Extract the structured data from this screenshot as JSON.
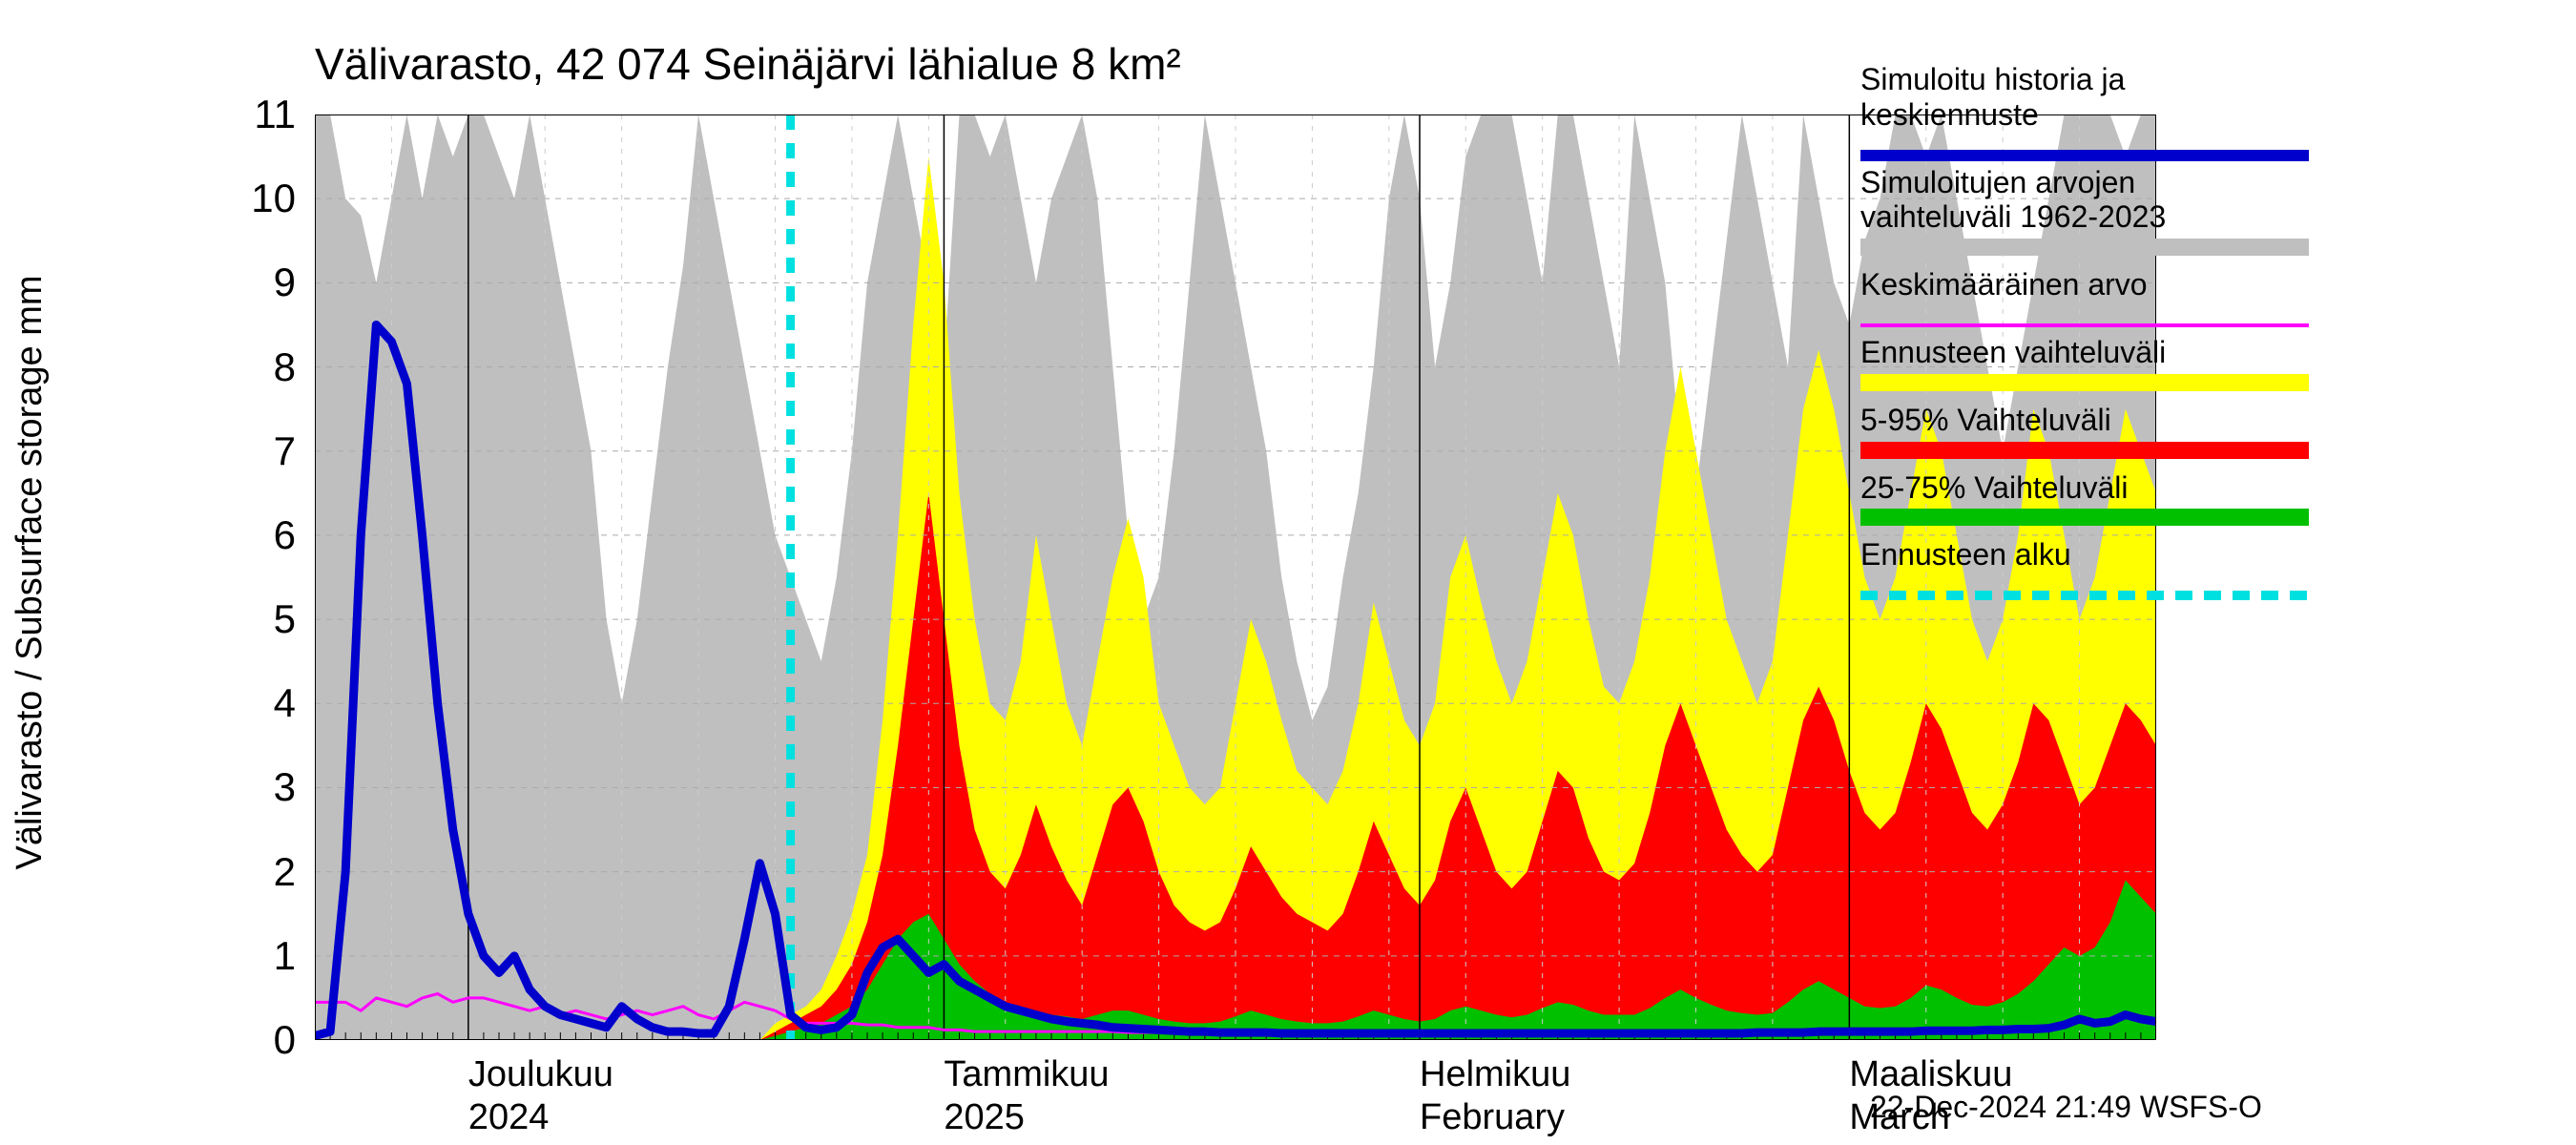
{
  "title": "Välivarasto, 42 074 Seinäjärvi lähialue 8 km²",
  "ylabel": "Välivarasto / Subsurface storage  mm",
  "footer": "22-Dec-2024 21:49 WSFS-O",
  "chart": {
    "type": "area-line-timeseries",
    "background_color": "#ffffff",
    "grid_color": "#aaaaaa",
    "grid_minor_color": "#cccccc",
    "ylim": [
      0,
      11
    ],
    "yticks": [
      0,
      1,
      2,
      3,
      4,
      5,
      6,
      7,
      8,
      9,
      10,
      11
    ],
    "x_days": 121,
    "x_month_starts": [
      0,
      10,
      41,
      72,
      100
    ],
    "x_month_labels_top": [
      "",
      "Joulukuu",
      "Tammikuu",
      "Helmikuu",
      "Maaliskuu"
    ],
    "x_month_labels_bot": [
      "",
      "2024",
      "2025",
      "February",
      "March"
    ],
    "title_fontsize": 46,
    "axis_label_fontsize": 38,
    "tick_fontsize": 42,
    "legend_fontsize": 32,
    "blue_line_color": "#0000cc",
    "blue_line_width": 9,
    "magenta_line_color": "#ff00ff",
    "magenta_line_width": 3,
    "cyan_dash_color": "#00e0e0",
    "cyan_dash_width": 9,
    "grey_fill": "#bfbfbf",
    "yellow_fill": "#ffff00",
    "red_fill": "#ff0000",
    "green_fill": "#00c000",
    "forecast_start_day": 31,
    "grey_upper": [
      11,
      11,
      10,
      9.8,
      9,
      10,
      11,
      10,
      11,
      10.5,
      11,
      11,
      10.5,
      10,
      11,
      10,
      9,
      8,
      7,
      5,
      4,
      5,
      6.5,
      8,
      9.2,
      11,
      10,
      9,
      8,
      7,
      6,
      5.5,
      5,
      4.5,
      5.5,
      7,
      9,
      10,
      11,
      10,
      9,
      8,
      11,
      11,
      10.5,
      11,
      10,
      9,
      10,
      10.5,
      11,
      10,
      8,
      6,
      5,
      5.5,
      7,
      9,
      11,
      10,
      9,
      8,
      7,
      5.5,
      4.5,
      3.8,
      4.2,
      5.5,
      6.5,
      8,
      10,
      11,
      10,
      8,
      9,
      10.5,
      11,
      11,
      11,
      10,
      9,
      11,
      11,
      10,
      9,
      8,
      11,
      10,
      9,
      7,
      6.5,
      8,
      9.5,
      11,
      10,
      9,
      8,
      11,
      10,
      9,
      8.5,
      9.5,
      10,
      11,
      11,
      10.5,
      11,
      10,
      9,
      8,
      7,
      8,
      9,
      10,
      11,
      11,
      11,
      11,
      10.5,
      11,
      11
    ],
    "grey_lower": [
      0,
      0,
      0,
      0,
      0,
      0,
      0,
      0,
      0,
      0,
      0,
      0,
      0,
      0,
      0,
      0,
      0,
      0,
      0,
      0,
      0,
      0,
      0,
      0,
      0,
      0,
      0,
      0,
      0,
      0,
      0,
      0,
      0,
      0,
      0,
      0,
      0,
      0,
      0,
      0,
      0,
      0,
      0,
      0,
      0,
      0,
      0,
      0,
      0,
      0,
      0,
      0,
      0,
      0,
      0,
      0,
      0,
      0,
      0,
      0,
      0,
      0,
      0,
      0,
      0,
      0,
      0,
      0,
      0,
      0,
      0,
      0,
      0,
      0,
      0,
      0,
      0,
      0,
      0,
      0,
      0,
      0,
      0,
      0,
      0,
      0,
      0,
      0,
      0,
      0,
      0,
      0,
      0,
      0,
      0,
      0,
      0,
      0,
      0,
      0,
      0,
      0,
      0,
      0,
      0,
      0,
      0,
      0,
      0,
      0,
      0,
      0,
      0,
      0,
      0,
      0,
      0,
      0,
      0,
      0,
      0
    ],
    "yellow_upper": [
      0,
      0,
      0,
      0,
      0,
      0,
      0,
      0,
      0,
      0,
      0,
      0,
      0,
      0,
      0,
      0,
      0,
      0,
      0,
      0,
      0,
      0,
      0,
      0,
      0,
      0,
      0,
      0,
      0,
      0,
      0.2,
      0.3,
      0.4,
      0.6,
      1.0,
      1.5,
      2.2,
      3.8,
      6.0,
      8.5,
      10.5,
      9.0,
      6.5,
      5.0,
      4.0,
      3.8,
      4.5,
      6.0,
      5.0,
      4.0,
      3.5,
      4.5,
      5.5,
      6.2,
      5.5,
      4.0,
      3.5,
      3.0,
      2.8,
      3.0,
      4.0,
      5.0,
      4.5,
      3.8,
      3.2,
      3.0,
      2.8,
      3.2,
      4.0,
      5.2,
      4.5,
      3.8,
      3.5,
      4.0,
      5.5,
      6.0,
      5.2,
      4.5,
      4.0,
      4.5,
      5.5,
      6.5,
      6.0,
      5.0,
      4.2,
      4.0,
      4.5,
      5.5,
      7.0,
      8.0,
      7.0,
      6.0,
      5.0,
      4.5,
      4.0,
      4.5,
      6.0,
      7.5,
      8.2,
      7.5,
      6.5,
      5.5,
      5.0,
      5.5,
      6.5,
      7.5,
      7.0,
      6.0,
      5.0,
      4.5,
      5.0,
      6.0,
      7.5,
      7.0,
      6.0,
      5.0,
      5.5,
      6.5,
      7.5,
      7.0,
      6.5
    ],
    "red_upper": [
      0,
      0,
      0,
      0,
      0,
      0,
      0,
      0,
      0,
      0,
      0,
      0,
      0,
      0,
      0,
      0,
      0,
      0,
      0,
      0,
      0,
      0,
      0,
      0,
      0,
      0,
      0,
      0,
      0,
      0,
      0.1,
      0.2,
      0.3,
      0.4,
      0.6,
      0.9,
      1.4,
      2.2,
      3.5,
      5.0,
      6.5,
      5.0,
      3.5,
      2.5,
      2.0,
      1.8,
      2.2,
      2.8,
      2.3,
      1.9,
      1.6,
      2.2,
      2.8,
      3.0,
      2.6,
      2.0,
      1.6,
      1.4,
      1.3,
      1.4,
      1.8,
      2.3,
      2.0,
      1.7,
      1.5,
      1.4,
      1.3,
      1.5,
      2.0,
      2.6,
      2.2,
      1.8,
      1.6,
      1.9,
      2.6,
      3.0,
      2.5,
      2.0,
      1.8,
      2.0,
      2.6,
      3.2,
      3.0,
      2.4,
      2.0,
      1.9,
      2.1,
      2.7,
      3.5,
      4.0,
      3.5,
      3.0,
      2.5,
      2.2,
      2.0,
      2.2,
      3.0,
      3.8,
      4.2,
      3.8,
      3.2,
      2.7,
      2.5,
      2.7,
      3.3,
      4.0,
      3.7,
      3.2,
      2.7,
      2.5,
      2.8,
      3.3,
      4.0,
      3.8,
      3.3,
      2.8,
      3.0,
      3.5,
      4.0,
      3.8,
      3.5
    ],
    "green_upper": [
      0,
      0,
      0,
      0,
      0,
      0,
      0,
      0,
      0,
      0,
      0,
      0,
      0,
      0,
      0,
      0,
      0,
      0,
      0,
      0,
      0,
      0,
      0,
      0,
      0,
      0,
      0,
      0,
      0,
      0,
      0.05,
      0.1,
      0.15,
      0.2,
      0.3,
      0.4,
      0.6,
      0.9,
      1.2,
      1.4,
      1.5,
      1.2,
      0.9,
      0.7,
      0.55,
      0.45,
      0.4,
      0.35,
      0.3,
      0.28,
      0.25,
      0.3,
      0.35,
      0.35,
      0.3,
      0.25,
      0.22,
      0.2,
      0.2,
      0.22,
      0.28,
      0.35,
      0.3,
      0.25,
      0.22,
      0.2,
      0.2,
      0.22,
      0.28,
      0.35,
      0.3,
      0.25,
      0.22,
      0.25,
      0.35,
      0.4,
      0.35,
      0.3,
      0.27,
      0.3,
      0.38,
      0.45,
      0.42,
      0.35,
      0.3,
      0.3,
      0.3,
      0.38,
      0.5,
      0.6,
      0.5,
      0.42,
      0.35,
      0.32,
      0.3,
      0.32,
      0.45,
      0.6,
      0.7,
      0.6,
      0.5,
      0.4,
      0.38,
      0.4,
      0.5,
      0.65,
      0.6,
      0.5,
      0.42,
      0.4,
      0.45,
      0.55,
      0.7,
      0.9,
      1.1,
      1.0,
      1.1,
      1.4,
      1.9,
      1.7,
      1.5
    ],
    "lower_zero": [
      0,
      0,
      0,
      0,
      0,
      0,
      0,
      0,
      0,
      0,
      0,
      0,
      0,
      0,
      0,
      0,
      0,
      0,
      0,
      0,
      0,
      0,
      0,
      0,
      0,
      0,
      0,
      0,
      0,
      0,
      0,
      0,
      0,
      0,
      0,
      0,
      0,
      0,
      0,
      0,
      0,
      0,
      0,
      0,
      0,
      0,
      0,
      0,
      0,
      0,
      0,
      0,
      0,
      0,
      0,
      0,
      0,
      0,
      0,
      0,
      0,
      0,
      0,
      0,
      0,
      0,
      0,
      0,
      0,
      0,
      0,
      0,
      0,
      0,
      0,
      0,
      0,
      0,
      0,
      0,
      0,
      0,
      0,
      0,
      0,
      0,
      0,
      0,
      0,
      0,
      0,
      0,
      0,
      0,
      0,
      0,
      0,
      0,
      0,
      0,
      0,
      0,
      0,
      0,
      0,
      0,
      0,
      0,
      0,
      0,
      0,
      0,
      0,
      0,
      0,
      0,
      0,
      0,
      0,
      0,
      0
    ],
    "blue_line": [
      0.05,
      0.1,
      2.0,
      6.0,
      8.5,
      8.3,
      7.8,
      6.0,
      4.0,
      2.5,
      1.5,
      1.0,
      0.8,
      1.0,
      0.6,
      0.4,
      0.3,
      0.25,
      0.2,
      0.15,
      0.4,
      0.25,
      0.15,
      0.1,
      0.1,
      0.08,
      0.08,
      0.4,
      1.2,
      2.1,
      1.5,
      0.3,
      0.15,
      0.12,
      0.15,
      0.3,
      0.8,
      1.1,
      1.2,
      1.0,
      0.8,
      0.9,
      0.7,
      0.6,
      0.5,
      0.4,
      0.35,
      0.3,
      0.25,
      0.22,
      0.2,
      0.18,
      0.15,
      0.14,
      0.13,
      0.12,
      0.11,
      0.1,
      0.1,
      0.09,
      0.09,
      0.09,
      0.09,
      0.08,
      0.08,
      0.08,
      0.08,
      0.08,
      0.08,
      0.08,
      0.08,
      0.08,
      0.08,
      0.08,
      0.08,
      0.08,
      0.08,
      0.08,
      0.08,
      0.08,
      0.08,
      0.08,
      0.08,
      0.08,
      0.08,
      0.08,
      0.08,
      0.08,
      0.08,
      0.08,
      0.08,
      0.08,
      0.08,
      0.08,
      0.09,
      0.09,
      0.09,
      0.09,
      0.1,
      0.1,
      0.1,
      0.1,
      0.1,
      0.1,
      0.1,
      0.11,
      0.11,
      0.11,
      0.11,
      0.12,
      0.12,
      0.13,
      0.13,
      0.14,
      0.18,
      0.25,
      0.2,
      0.22,
      0.3,
      0.25,
      0.22
    ],
    "magenta_line": [
      0.45,
      0.45,
      0.45,
      0.35,
      0.5,
      0.45,
      0.4,
      0.5,
      0.55,
      0.45,
      0.5,
      0.5,
      0.45,
      0.4,
      0.35,
      0.4,
      0.3,
      0.35,
      0.3,
      0.25,
      0.3,
      0.35,
      0.3,
      0.35,
      0.4,
      0.3,
      0.25,
      0.35,
      0.45,
      0.4,
      0.35,
      0.25,
      0.2,
      0.2,
      0.2,
      0.2,
      0.18,
      0.18,
      0.15,
      0.15,
      0.15,
      0.12,
      0.12,
      0.1,
      0.1,
      0.1,
      0.1,
      0.1,
      0.1,
      0.1,
      0.1,
      0.1,
      0.1,
      0.09,
      0.09,
      0.09,
      0.09,
      0.09,
      0.09,
      0.09,
      0.09,
      0.09,
      0.09,
      0.09,
      0.09,
      0.09,
      0.09,
      0.09,
      0.08,
      0.08,
      0.08,
      0.08,
      0.08,
      0.08,
      0.08,
      0.08,
      0.08,
      0.08,
      0.08,
      0.08,
      0.08,
      0.08,
      0.08,
      0.08,
      0.08,
      0.08,
      0.08,
      0.08,
      0.08,
      0.08,
      0.08,
      0.08,
      0.09,
      0.09,
      0.09,
      0.09,
      0.09,
      0.09,
      0.09,
      0.09,
      0.09,
      0.09,
      0.1,
      0.1,
      0.1,
      0.1,
      0.1,
      0.1,
      0.1,
      0.12,
      0.12,
      0.12,
      0.12,
      0.14,
      0.18,
      0.22,
      0.18,
      0.22,
      0.28,
      0.24,
      0.2
    ]
  },
  "legend": [
    {
      "label_lines": [
        "Simuloitu historia ja",
        "keskiennuste"
      ],
      "fill": null,
      "stroke": "#0000cc",
      "stroke_w": 12,
      "dash": null
    },
    {
      "label_lines": [
        "Simuloitujen arvojen",
        "vaihteluväli 1962-2023"
      ],
      "fill": "#bfbfbf",
      "stroke": null
    },
    {
      "label_lines": [
        "Keskimääräinen arvo"
      ],
      "fill": null,
      "stroke": "#ff00ff",
      "stroke_w": 4,
      "dash": null
    },
    {
      "label_lines": [
        "Ennusteen vaihteluväli"
      ],
      "fill": "#ffff00",
      "stroke": null
    },
    {
      "label_lines": [
        "5-95% Vaihteluväli"
      ],
      "fill": "#ff0000",
      "stroke": null
    },
    {
      "label_lines": [
        "25-75% Vaihteluväli"
      ],
      "fill": "#00c000",
      "stroke": null
    },
    {
      "label_lines": [
        "Ennusteen alku"
      ],
      "fill": null,
      "stroke": "#00e0e0",
      "stroke_w": 10,
      "dash": "18,12"
    }
  ]
}
